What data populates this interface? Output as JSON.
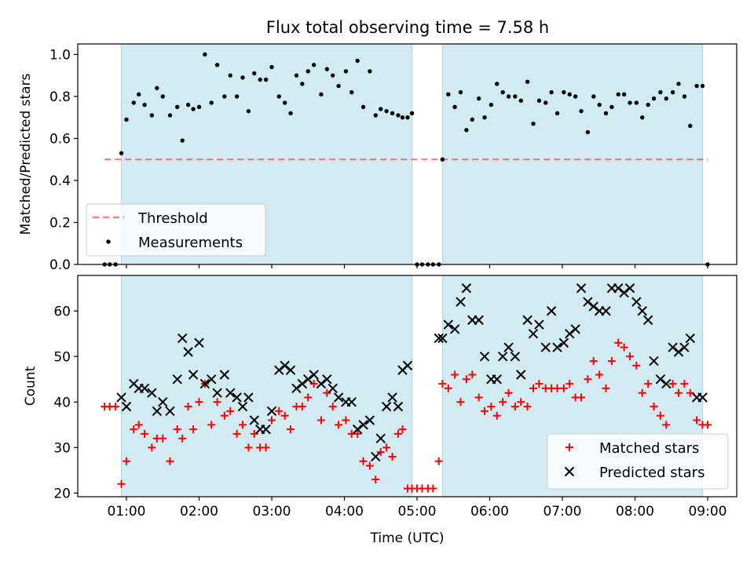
{
  "title": "Flux total observing time = 7.58 h",
  "colors": {
    "shade": "#add8e6",
    "threshold": "#ff4d4d",
    "measurement": "#000000",
    "matched": "#ff0000",
    "predicted": "#000000"
  },
  "chart_data": [
    {
      "type": "scatter",
      "ylabel": "Matched/Predicted stars",
      "ylim": [
        0,
        1.05
      ],
      "yticks": [
        "0.0",
        "0.2",
        "0.4",
        "0.6",
        "0.8",
        "1.0"
      ],
      "ytick_values": [
        0,
        0.2,
        0.4,
        0.6,
        0.8,
        1.0
      ],
      "xlim": [
        0.33,
        9.4
      ],
      "shaded_intervals": [
        [
          0.93,
          4.93
        ],
        [
          5.35,
          8.93
        ]
      ],
      "legend": {
        "position": "lower left",
        "entries": [
          {
            "label": "Threshold",
            "style": "dashed-line"
          },
          {
            "label": "Measurements",
            "style": "dot"
          }
        ]
      },
      "series": [
        {
          "name": "Threshold",
          "kind": "hline",
          "y": 0.5,
          "x_range": [
            0.7,
            9.0
          ]
        },
        {
          "name": "Measurements",
          "kind": "points",
          "x": [
            0.7,
            0.77,
            0.85,
            0.93,
            1.0,
            1.1,
            1.17,
            1.25,
            1.35,
            1.42,
            1.5,
            1.6,
            1.7,
            1.77,
            1.85,
            1.92,
            2.0,
            2.08,
            2.17,
            2.25,
            2.35,
            2.43,
            2.52,
            2.6,
            2.68,
            2.76,
            2.84,
            2.92,
            3.0,
            3.1,
            3.18,
            3.26,
            3.34,
            3.42,
            3.5,
            3.58,
            3.68,
            3.76,
            3.84,
            3.92,
            4.02,
            4.1,
            4.18,
            4.26,
            4.35,
            4.43,
            4.5,
            4.58,
            4.66,
            4.74,
            4.8,
            4.87,
            4.93,
            5.0,
            5.07,
            5.15,
            5.22,
            5.3,
            5.35,
            5.43,
            5.52,
            5.6,
            5.68,
            5.76,
            5.85,
            5.93,
            6.02,
            6.1,
            6.18,
            6.26,
            6.35,
            6.43,
            6.52,
            6.6,
            6.68,
            6.77,
            6.85,
            6.93,
            7.02,
            7.1,
            7.18,
            7.26,
            7.35,
            7.43,
            7.51,
            7.6,
            7.68,
            7.77,
            7.85,
            7.93,
            8.02,
            8.1,
            8.18,
            8.26,
            8.35,
            8.43,
            8.52,
            8.6,
            8.68,
            8.76,
            8.85,
            8.93,
            9.0
          ],
          "y": [
            0.0,
            0.0,
            0.0,
            0.53,
            0.69,
            0.77,
            0.81,
            0.76,
            0.71,
            0.84,
            0.8,
            0.71,
            0.75,
            0.59,
            0.76,
            0.74,
            0.75,
            1.0,
            0.77,
            0.95,
            0.8,
            0.9,
            0.8,
            0.89,
            0.73,
            0.91,
            0.88,
            0.88,
            0.94,
            0.8,
            0.77,
            0.72,
            0.9,
            0.86,
            0.92,
            0.95,
            0.81,
            0.93,
            0.9,
            0.85,
            0.92,
            0.82,
            0.97,
            0.75,
            0.92,
            0.71,
            0.74,
            0.73,
            0.72,
            0.71,
            0.7,
            0.7,
            0.72,
            0.0,
            0.0,
            0.0,
            0.0,
            0.0,
            0.5,
            0.81,
            0.75,
            0.82,
            0.64,
            0.69,
            0.79,
            0.7,
            0.76,
            0.86,
            0.82,
            0.8,
            0.8,
            0.78,
            0.87,
            0.67,
            0.78,
            0.77,
            0.82,
            0.72,
            0.82,
            0.81,
            0.8,
            0.73,
            0.63,
            0.8,
            0.76,
            0.72,
            0.75,
            0.81,
            0.81,
            0.77,
            0.77,
            0.7,
            0.76,
            0.79,
            0.82,
            0.79,
            0.82,
            0.86,
            0.8,
            0.66,
            0.85,
            0.85,
            0.0
          ]
        }
      ]
    },
    {
      "type": "scatter",
      "ylabel": "Count",
      "xlabel": "Time (UTC)",
      "ylim": [
        19.2,
        67.8
      ],
      "yticks": [
        "20",
        "30",
        "40",
        "50",
        "60"
      ],
      "ytick_values": [
        20,
        30,
        40,
        50,
        60
      ],
      "xlim": [
        0.33,
        9.4
      ],
      "xticks": [
        "01:00",
        "02:00",
        "03:00",
        "04:00",
        "05:00",
        "06:00",
        "07:00",
        "08:00",
        "09:00"
      ],
      "xtick_values": [
        1,
        2,
        3,
        4,
        5,
        6,
        7,
        8,
        9
      ],
      "shaded_intervals": [
        [
          0.93,
          4.93
        ],
        [
          5.35,
          8.93
        ]
      ],
      "legend": {
        "position": "lower right",
        "entries": [
          {
            "label": "Matched stars",
            "style": "plus"
          },
          {
            "label": "Predicted stars",
            "style": "x"
          }
        ]
      },
      "series": [
        {
          "name": "Matched stars",
          "marker": "plus",
          "x": [
            0.7,
            0.77,
            0.85,
            0.93,
            1.0,
            1.1,
            1.17,
            1.25,
            1.35,
            1.42,
            1.5,
            1.6,
            1.7,
            1.77,
            1.85,
            1.92,
            2.0,
            2.08,
            2.17,
            2.25,
            2.35,
            2.43,
            2.52,
            2.6,
            2.68,
            2.76,
            2.84,
            2.92,
            3.0,
            3.1,
            3.18,
            3.26,
            3.34,
            3.42,
            3.5,
            3.58,
            3.68,
            3.76,
            3.84,
            3.92,
            4.02,
            4.1,
            4.18,
            4.26,
            4.35,
            4.43,
            4.5,
            4.58,
            4.66,
            4.74,
            4.8,
            4.87,
            4.93,
            5.0,
            5.07,
            5.15,
            5.22,
            5.3,
            5.35,
            5.43,
            5.52,
            5.6,
            5.68,
            5.76,
            5.85,
            5.93,
            6.02,
            6.1,
            6.18,
            6.26,
            6.35,
            6.43,
            6.52,
            6.6,
            6.68,
            6.77,
            6.85,
            6.93,
            7.02,
            7.1,
            7.18,
            7.26,
            7.35,
            7.43,
            7.51,
            7.6,
            7.68,
            7.77,
            7.85,
            7.93,
            8.02,
            8.1,
            8.18,
            8.26,
            8.35,
            8.43,
            8.52,
            8.6,
            8.68,
            8.76,
            8.85,
            8.93,
            9.0
          ],
          "y": [
            39,
            39,
            39,
            22,
            27,
            34,
            35,
            33,
            30,
            32,
            32,
            27,
            34,
            32,
            39,
            34,
            40,
            44,
            35,
            40,
            37,
            38,
            33,
            35,
            30,
            33,
            30,
            30,
            36,
            38,
            37,
            34,
            39,
            39,
            41,
            44,
            36,
            42,
            39,
            35,
            36,
            33,
            33,
            27,
            26,
            23,
            29,
            30,
            28,
            33,
            34,
            21,
            21,
            21,
            21,
            21,
            21,
            27,
            44,
            43,
            46,
            40,
            45,
            46,
            41,
            38,
            39,
            37,
            40,
            42,
            39,
            40,
            39,
            43,
            44,
            43,
            43,
            43,
            43,
            44,
            41,
            41,
            45,
            49,
            46,
            43,
            49,
            53,
            52,
            50,
            48,
            42,
            44,
            39,
            37,
            35,
            44,
            42,
            44,
            42,
            36,
            35,
            35
          ]
        },
        {
          "name": "Predicted stars",
          "marker": "x",
          "x": [
            0.93,
            1.0,
            1.1,
            1.17,
            1.25,
            1.35,
            1.42,
            1.5,
            1.6,
            1.7,
            1.77,
            1.85,
            1.92,
            2.0,
            2.08,
            2.17,
            2.25,
            2.35,
            2.43,
            2.52,
            2.6,
            2.68,
            2.76,
            2.84,
            2.92,
            3.0,
            3.1,
            3.18,
            3.26,
            3.34,
            3.42,
            3.5,
            3.58,
            3.68,
            3.76,
            3.84,
            3.92,
            4.02,
            4.1,
            4.18,
            4.26,
            4.35,
            4.43,
            4.5,
            4.58,
            4.66,
            4.74,
            4.8,
            4.87,
            5.3,
            5.35,
            5.43,
            5.52,
            5.6,
            5.68,
            5.76,
            5.85,
            5.93,
            6.02,
            6.1,
            6.18,
            6.26,
            6.35,
            6.43,
            6.52,
            6.6,
            6.68,
            6.77,
            6.85,
            6.93,
            7.02,
            7.1,
            7.18,
            7.26,
            7.35,
            7.43,
            7.51,
            7.6,
            7.68,
            7.77,
            7.85,
            7.93,
            8.02,
            8.1,
            8.18,
            8.26,
            8.35,
            8.43,
            8.52,
            8.6,
            8.68,
            8.76,
            8.85,
            8.93
          ],
          "y": [
            41,
            39,
            44,
            43,
            43,
            42,
            38,
            40,
            38,
            45,
            54,
            51,
            46,
            53,
            44,
            45,
            42,
            46,
            42,
            41,
            39,
            41,
            36,
            34,
            34,
            38,
            47,
            48,
            47,
            43,
            44,
            45,
            46,
            44,
            45,
            43,
            41,
            40,
            40,
            34,
            35,
            36,
            28,
            32,
            39,
            41,
            39,
            47,
            48,
            54,
            54,
            57,
            56,
            62,
            65,
            58,
            58,
            50,
            45,
            45,
            50,
            52,
            50,
            46,
            58,
            55,
            57,
            52,
            60,
            52,
            53,
            55,
            56,
            65,
            62,
            61,
            60,
            60,
            65,
            65,
            64,
            65,
            62,
            60,
            58,
            49,
            45,
            44,
            52,
            51,
            52,
            54,
            41,
            41
          ]
        }
      ]
    }
  ]
}
